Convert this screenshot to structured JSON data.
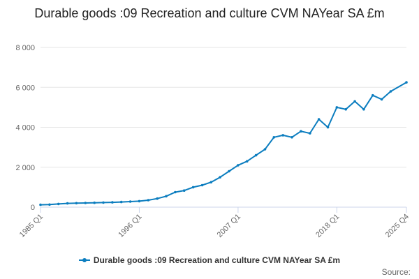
{
  "chart_data": {
    "type": "line",
    "title": "Durable goods :09 Recreation and culture CVM NAYear SA £m",
    "series": [
      {
        "name": "Durable goods :09 Recreation and culture CVM NAYear SA £m",
        "color": "#0b7dbf",
        "points": [
          [
            "1985 Q1",
            120
          ],
          [
            "1986 Q1",
            130
          ],
          [
            "1987 Q1",
            160
          ],
          [
            "1988 Q1",
            190
          ],
          [
            "1989 Q1",
            200
          ],
          [
            "1990 Q1",
            210
          ],
          [
            "1991 Q1",
            220
          ],
          [
            "1992 Q1",
            230
          ],
          [
            "1993 Q1",
            240
          ],
          [
            "1994 Q1",
            260
          ],
          [
            "1995 Q1",
            280
          ],
          [
            "1996 Q1",
            300
          ],
          [
            "1997 Q1",
            350
          ],
          [
            "1998 Q1",
            430
          ],
          [
            "1999 Q1",
            550
          ],
          [
            "2000 Q1",
            750
          ],
          [
            "2001 Q1",
            830
          ],
          [
            "2002 Q1",
            1000
          ],
          [
            "2003 Q1",
            1100
          ],
          [
            "2004 Q1",
            1250
          ],
          [
            "2005 Q1",
            1500
          ],
          [
            "2006 Q1",
            1800
          ],
          [
            "2007 Q1",
            2100
          ],
          [
            "2008 Q1",
            2300
          ],
          [
            "2009 Q1",
            2600
          ],
          [
            "2010 Q1",
            2900
          ],
          [
            "2011 Q1",
            3500
          ],
          [
            "2012 Q1",
            3600
          ],
          [
            "2013 Q1",
            3500
          ],
          [
            "2014 Q1",
            3800
          ],
          [
            "2015 Q1",
            3700
          ],
          [
            "2016 Q1",
            4400
          ],
          [
            "2017 Q1",
            4000
          ],
          [
            "2018 Q1",
            5000
          ],
          [
            "2019 Q1",
            4900
          ],
          [
            "2020 Q1",
            5300
          ],
          [
            "2021 Q1",
            4900
          ],
          [
            "2022 Q1",
            5600
          ],
          [
            "2023 Q1",
            5400
          ],
          [
            "2024 Q1",
            5800
          ],
          [
            "2025 Q4",
            6250
          ]
        ]
      }
    ],
    "x_ticks": [
      "1985 Q1",
      "1996 Q1",
      "2007 Q1",
      "2018 Q1",
      "2025 Q4"
    ],
    "ylim": [
      0,
      8000
    ],
    "y_ticks": [
      0,
      2000,
      4000,
      6000,
      8000
    ],
    "y_tick_labels": [
      "0",
      "2 000",
      "4 000",
      "6 000",
      "8 000"
    ],
    "xlabel": "",
    "ylabel": "",
    "grid": true,
    "legend_position": "bottom"
  },
  "credits": {
    "text": "Source:"
  }
}
